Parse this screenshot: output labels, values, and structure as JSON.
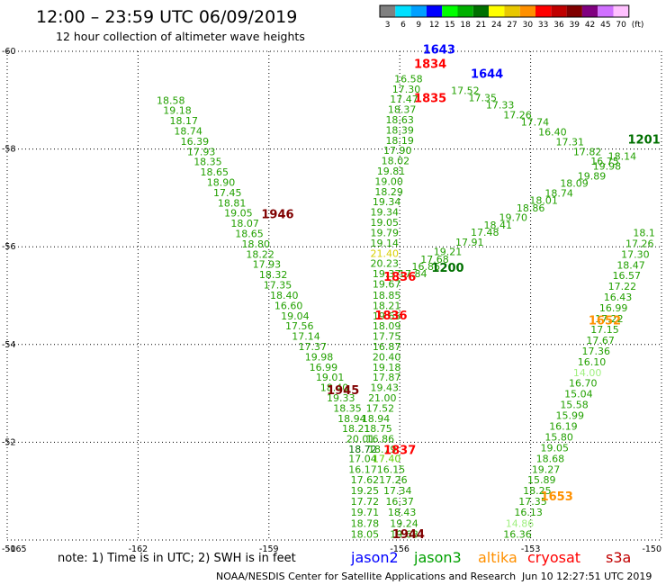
{
  "header": {
    "title": "12:00 – 23:59 UTC 06/09/2019",
    "subtitle": "12 hour collection of altimeter wave heights"
  },
  "color_scale": {
    "unit_label": "(ft)",
    "bins": [
      {
        "label": "3",
        "color": "#808080"
      },
      {
        "label": "6",
        "color": "#00e0ff"
      },
      {
        "label": "9",
        "color": "#00a0ff"
      },
      {
        "label": "12",
        "color": "#0000ff"
      },
      {
        "label": "15",
        "color": "#00ff00"
      },
      {
        "label": "18",
        "color": "#00b000"
      },
      {
        "label": "21",
        "color": "#007000"
      },
      {
        "label": "24",
        "color": "#ffff00"
      },
      {
        "label": "27",
        "color": "#e8c800"
      },
      {
        "label": "30",
        "color": "#ff9000"
      },
      {
        "label": "33",
        "color": "#ff0000"
      },
      {
        "label": "36",
        "color": "#c00000"
      },
      {
        "label": "39",
        "color": "#800000"
      },
      {
        "label": "42",
        "color": "#800080"
      },
      {
        "label": "45",
        "color": "#d070ff"
      },
      {
        "label": "70",
        "color": "#ffc0ff"
      }
    ]
  },
  "chart_data": {
    "type": "scatter",
    "title": "12:00 – 23:59 UTC 06/09/2019",
    "subtitle": "12 hour collection of altimeter wave heights",
    "xlim": [
      -165,
      -150
    ],
    "ylim": [
      -60,
      -50
    ],
    "x_ticks": [
      -165,
      -162,
      -159,
      -156,
      -153,
      -150
    ],
    "y_ticks": [
      -50,
      -52,
      -54,
      -56,
      -58,
      -60
    ],
    "grid": true,
    "colors": {
      "green": "#22a000",
      "lightgreen": "#60d000",
      "darkgreen": "#006800",
      "yellow": "#d8d000",
      "palegreen": "#a0f080"
    },
    "time_labels": [
      {
        "text": "1944",
        "x": -155.8,
        "y": -50.13,
        "color": "#800000"
      },
      {
        "text": "1837",
        "x": -156.0,
        "y": -51.85,
        "color": "#ff0000"
      },
      {
        "text": "1945",
        "x": -157.3,
        "y": -53.08,
        "color": "#800000"
      },
      {
        "text": "1836",
        "x": -156.2,
        "y": -54.6,
        "color": "#ff0000"
      },
      {
        "text": "1836",
        "x": -156.0,
        "y": -55.4,
        "color": "#ff0000"
      },
      {
        "text": "1200",
        "x": -154.9,
        "y": -55.58,
        "color": "#007000"
      },
      {
        "text": "1946",
        "x": -158.8,
        "y": -56.68,
        "color": "#800000"
      },
      {
        "text": "1653",
        "x": -152.4,
        "y": -50.9,
        "color": "#ff9000"
      },
      {
        "text": "1652",
        "x": -151.3,
        "y": -54.5,
        "color": "#ff9000"
      },
      {
        "text": "1835",
        "x": -155.3,
        "y": -59.05,
        "color": "#ff0000"
      },
      {
        "text": "1834",
        "x": -155.3,
        "y": -59.75,
        "color": "#ff0000"
      },
      {
        "text": "1644",
        "x": -154.0,
        "y": -59.55,
        "color": "#0000ff"
      },
      {
        "text": "1643",
        "x": -155.1,
        "y": -60.05,
        "color": "#0000ff"
      },
      {
        "text": "1201",
        "x": -150.4,
        "y": -58.2,
        "color": "#007000"
      }
    ],
    "tracks": [
      {
        "name": "jason3-descending-west",
        "color": "#22a000",
        "points": [
          {
            "x": -156.8,
            "y": -50.12,
            "v": "18.05"
          },
          {
            "x": -156.8,
            "y": -50.34,
            "v": "18.78"
          },
          {
            "x": -156.8,
            "y": -50.57,
            "v": "19.71"
          },
          {
            "x": -156.8,
            "y": -50.79,
            "v": "17.72"
          },
          {
            "x": -156.8,
            "y": -51.01,
            "v": "19.25"
          },
          {
            "x": -156.8,
            "y": -51.23,
            "v": "17.62"
          },
          {
            "x": -156.85,
            "y": -51.45,
            "v": "16.17"
          },
          {
            "x": -156.85,
            "y": -51.67,
            "v": "17.04"
          },
          {
            "x": -156.85,
            "y": -51.86,
            "v": "18.72",
            "c": "#007000"
          },
          {
            "x": -156.9,
            "y": -52.07,
            "v": "20.01"
          },
          {
            "x": -157.0,
            "y": -52.28,
            "v": "18.21"
          },
          {
            "x": -157.1,
            "y": -52.49,
            "v": "18.94"
          },
          {
            "x": -157.2,
            "y": -52.7,
            "v": "18.35"
          },
          {
            "x": -157.35,
            "y": -52.91,
            "v": "19.33"
          },
          {
            "x": -157.5,
            "y": -53.12,
            "v": "18.40"
          },
          {
            "x": -157.6,
            "y": -53.33,
            "v": "19.01"
          },
          {
            "x": -157.75,
            "y": -53.54,
            "v": "16.99"
          },
          {
            "x": -157.85,
            "y": -53.75,
            "v": "19.98"
          },
          {
            "x": -158.0,
            "y": -53.96,
            "v": "17.37"
          },
          {
            "x": -158.15,
            "y": -54.17,
            "v": "17.14"
          },
          {
            "x": -158.3,
            "y": -54.38,
            "v": "17.56"
          },
          {
            "x": -158.4,
            "y": -54.59,
            "v": "19.04"
          },
          {
            "x": -158.55,
            "y": -54.8,
            "v": "16.60"
          },
          {
            "x": -158.65,
            "y": -55.01,
            "v": "18.40"
          },
          {
            "x": -158.8,
            "y": -55.22,
            "v": "17.35"
          },
          {
            "x": -158.9,
            "y": -55.43,
            "v": "18.32"
          },
          {
            "x": -159.05,
            "y": -55.64,
            "v": "17.93"
          },
          {
            "x": -159.2,
            "y": -55.85,
            "v": "18.22"
          },
          {
            "x": -159.3,
            "y": -56.06,
            "v": "18.80"
          },
          {
            "x": -159.45,
            "y": -56.27,
            "v": "18.65"
          },
          {
            "x": -159.55,
            "y": -56.48,
            "v": "18.07"
          },
          {
            "x": -159.7,
            "y": -56.69,
            "v": "19.05"
          },
          {
            "x": -159.85,
            "y": -56.9,
            "v": "18.81"
          },
          {
            "x": -159.95,
            "y": -57.11,
            "v": "17.45"
          },
          {
            "x": -160.1,
            "y": -57.32,
            "v": "18.90"
          },
          {
            "x": -160.25,
            "y": -57.53,
            "v": "18.65"
          },
          {
            "x": -160.4,
            "y": -57.74,
            "v": "18.35"
          },
          {
            "x": -160.55,
            "y": -57.95,
            "v": "17.93"
          },
          {
            "x": -160.7,
            "y": -58.16,
            "v": "16.39"
          },
          {
            "x": -160.85,
            "y": -58.37,
            "v": "18.74"
          },
          {
            "x": -160.95,
            "y": -58.58,
            "v": "18.17"
          },
          {
            "x": -161.1,
            "y": -58.79,
            "v": "19.18"
          },
          {
            "x": -161.25,
            "y": -59.0,
            "v": "18.58"
          }
        ]
      },
      {
        "name": "jason3-descending-east",
        "color": "#22a000",
        "points": [
          {
            "x": -155.9,
            "y": -50.12,
            "v": "19.68"
          },
          {
            "x": -155.9,
            "y": -50.34,
            "v": "19.24"
          },
          {
            "x": -155.95,
            "y": -50.57,
            "v": "18.43"
          },
          {
            "x": -156.0,
            "y": -50.79,
            "v": "16.37"
          },
          {
            "x": -156.05,
            "y": -51.01,
            "v": "17.34"
          },
          {
            "x": -156.15,
            "y": -51.23,
            "v": "17.26"
          },
          {
            "x": -156.2,
            "y": -51.45,
            "v": "16.15"
          },
          {
            "x": -156.3,
            "y": -51.67,
            "v": "17.40",
            "c": "#60d000"
          },
          {
            "x": -156.4,
            "y": -51.86,
            "v": "18.79"
          },
          {
            "x": -156.45,
            "y": -52.07,
            "v": "16.86"
          },
          {
            "x": -156.5,
            "y": -52.28,
            "v": "18.75"
          },
          {
            "x": -156.55,
            "y": -52.49,
            "v": "18.94"
          },
          {
            "x": -156.45,
            "y": -52.7,
            "v": "17.52"
          },
          {
            "x": -156.4,
            "y": -52.91,
            "v": "21.00"
          },
          {
            "x": -156.35,
            "y": -53.12,
            "v": "19.43"
          },
          {
            "x": -156.3,
            "y": -53.33,
            "v": "17.87"
          },
          {
            "x": -156.3,
            "y": -53.54,
            "v": "19.18"
          },
          {
            "x": -156.3,
            "y": -53.75,
            "v": "20.40"
          },
          {
            "x": -156.3,
            "y": -53.96,
            "v": "16.87"
          },
          {
            "x": -156.3,
            "y": -54.17,
            "v": "17.75"
          },
          {
            "x": -156.3,
            "y": -54.38,
            "v": "18.09"
          },
          {
            "x": -156.3,
            "y": -54.59,
            "v": "19.65"
          },
          {
            "x": -156.3,
            "y": -54.8,
            "v": "18.21"
          },
          {
            "x": -156.3,
            "y": -55.01,
            "v": "18.85"
          },
          {
            "x": -156.3,
            "y": -55.24,
            "v": "19.67"
          },
          {
            "x": -156.3,
            "y": -55.45,
            "v": "19.37"
          },
          {
            "x": -156.35,
            "y": -55.66,
            "v": "20.23"
          },
          {
            "x": -156.35,
            "y": -55.87,
            "v": "21.40",
            "c": "#d8d000"
          },
          {
            "x": -156.35,
            "y": -56.08,
            "v": "19.14"
          },
          {
            "x": -156.35,
            "y": -56.29,
            "v": "19.79"
          },
          {
            "x": -156.35,
            "y": -56.5,
            "v": "19.05"
          },
          {
            "x": -156.35,
            "y": -56.71,
            "v": "19.34"
          },
          {
            "x": -156.3,
            "y": -56.92,
            "v": "19.34"
          },
          {
            "x": -156.25,
            "y": -57.13,
            "v": "18.29"
          },
          {
            "x": -156.25,
            "y": -57.34,
            "v": "19.00"
          },
          {
            "x": -156.2,
            "y": -57.55,
            "v": "19.81"
          },
          {
            "x": -156.1,
            "y": -57.76,
            "v": "18.02"
          },
          {
            "x": -156.05,
            "y": -57.97,
            "v": "17.90"
          },
          {
            "x": -156.0,
            "y": -58.18,
            "v": "18.19"
          },
          {
            "x": -156.0,
            "y": -58.39,
            "v": "18.39"
          },
          {
            "x": -156.0,
            "y": -58.6,
            "v": "18.63"
          },
          {
            "x": -155.95,
            "y": -58.81,
            "v": "18.37"
          },
          {
            "x": -155.9,
            "y": -59.02,
            "v": "17.47"
          },
          {
            "x": -155.85,
            "y": -59.23,
            "v": "17.30"
          },
          {
            "x": -155.8,
            "y": -59.44,
            "v": "16.58"
          }
        ]
      },
      {
        "name": "jason3-ascending-diagonal",
        "color": "#22a000",
        "points": [
          {
            "x": -155.7,
            "y": -55.45,
            "v": "17.84"
          },
          {
            "x": -155.4,
            "y": -55.6,
            "v": "16.86"
          },
          {
            "x": -155.2,
            "y": -55.75,
            "v": "17.68"
          },
          {
            "x": -154.9,
            "y": -55.9,
            "v": "19.21"
          },
          {
            "x": -154.4,
            "y": -56.1,
            "v": "17.91"
          },
          {
            "x": -154.05,
            "y": -56.3,
            "v": "17.48"
          },
          {
            "x": -153.75,
            "y": -56.45,
            "v": "18.41"
          },
          {
            "x": -153.4,
            "y": -56.6,
            "v": "19.70"
          },
          {
            "x": -153.0,
            "y": -56.8,
            "v": "18.86"
          },
          {
            "x": -152.7,
            "y": -56.95,
            "v": "18.01"
          },
          {
            "x": -152.35,
            "y": -57.1,
            "v": "18.74"
          },
          {
            "x": -152.0,
            "y": -57.3,
            "v": "18.09"
          },
          {
            "x": -151.6,
            "y": -57.45,
            "v": "19.89"
          },
          {
            "x": -151.25,
            "y": -57.65,
            "v": "19.98"
          },
          {
            "x": -150.9,
            "y": -57.85,
            "v": "18.14"
          }
        ]
      },
      {
        "name": "altika-descending",
        "color": "#22a000",
        "points": [
          {
            "x": -153.3,
            "y": -50.12,
            "v": "16.36"
          },
          {
            "x": -153.25,
            "y": -50.34,
            "v": "14.86",
            "c": "#a0f080"
          },
          {
            "x": -153.05,
            "y": -50.57,
            "v": "16.13"
          },
          {
            "x": -152.95,
            "y": -50.79,
            "v": "17.35"
          },
          {
            "x": -152.85,
            "y": -51.01,
            "v": "18.25"
          },
          {
            "x": -152.75,
            "y": -51.23,
            "v": "15.89"
          },
          {
            "x": -152.65,
            "y": -51.45,
            "v": "19.27"
          },
          {
            "x": -152.55,
            "y": -51.67,
            "v": "18.68"
          },
          {
            "x": -152.45,
            "y": -51.89,
            "v": "19.05"
          },
          {
            "x": -152.35,
            "y": -52.11,
            "v": "15.80"
          },
          {
            "x": -152.25,
            "y": -52.33,
            "v": "16.19"
          },
          {
            "x": -152.1,
            "y": -52.55,
            "v": "15.99"
          },
          {
            "x": -152.0,
            "y": -52.77,
            "v": "15.58"
          },
          {
            "x": -151.9,
            "y": -52.99,
            "v": "15.04"
          },
          {
            "x": -151.8,
            "y": -53.21,
            "v": "16.70"
          },
          {
            "x": -151.7,
            "y": -53.43,
            "v": "14.00",
            "c": "#a0f080"
          },
          {
            "x": -151.6,
            "y": -53.65,
            "v": "16.10"
          },
          {
            "x": -151.5,
            "y": -53.87,
            "v": "17.36"
          },
          {
            "x": -151.4,
            "y": -54.09,
            "v": "17.67"
          },
          {
            "x": -151.3,
            "y": -54.31,
            "v": "17.15"
          },
          {
            "x": -151.2,
            "y": -54.53,
            "v": "17.22"
          },
          {
            "x": -151.1,
            "y": -54.75,
            "v": "16.99"
          },
          {
            "x": -151.0,
            "y": -54.97,
            "v": "16.43"
          },
          {
            "x": -150.9,
            "y": -55.19,
            "v": "17.22"
          },
          {
            "x": -150.8,
            "y": -55.41,
            "v": "16.57"
          },
          {
            "x": -150.7,
            "y": -55.63,
            "v": "18.47"
          },
          {
            "x": -150.6,
            "y": -55.85,
            "v": "17.30"
          },
          {
            "x": -150.5,
            "y": -56.07,
            "v": "17.26"
          },
          {
            "x": -150.4,
            "y": -56.29,
            "v": "18.1"
          }
        ]
      },
      {
        "name": "jason3-ascending-south",
        "color": "#22a000",
        "points": [
          {
            "x": -154.5,
            "y": -59.2,
            "v": "17.52"
          },
          {
            "x": -154.1,
            "y": -59.05,
            "v": "17.35"
          },
          {
            "x": -153.7,
            "y": -58.9,
            "v": "17.33"
          },
          {
            "x": -153.3,
            "y": -58.7,
            "v": "17.26"
          },
          {
            "x": -152.9,
            "y": -58.55,
            "v": "17.74"
          },
          {
            "x": -152.5,
            "y": -58.35,
            "v": "16.40"
          },
          {
            "x": -152.1,
            "y": -58.15,
            "v": "17.31"
          },
          {
            "x": -151.7,
            "y": -57.95,
            "v": "17.82"
          },
          {
            "x": -151.3,
            "y": -57.75,
            "v": "16.75"
          }
        ]
      }
    ]
  },
  "footer": {
    "note": "note: 1) Time is in UTC; 2) SWH is in feet",
    "missions": [
      {
        "label": "jason2",
        "color": "#0000ff"
      },
      {
        "label": "jason3",
        "color": "#00a000"
      },
      {
        "label": "altika",
        "color": "#ff9000"
      },
      {
        "label": "cryosat",
        "color": "#ff0000"
      },
      {
        "label": "s3a",
        "color": "#c00000"
      }
    ],
    "credit": "NOAA/NESDIS Center for Satellite Applications and Research",
    "timestamp": "Jun 10 12:27:51 UTC 2019"
  }
}
